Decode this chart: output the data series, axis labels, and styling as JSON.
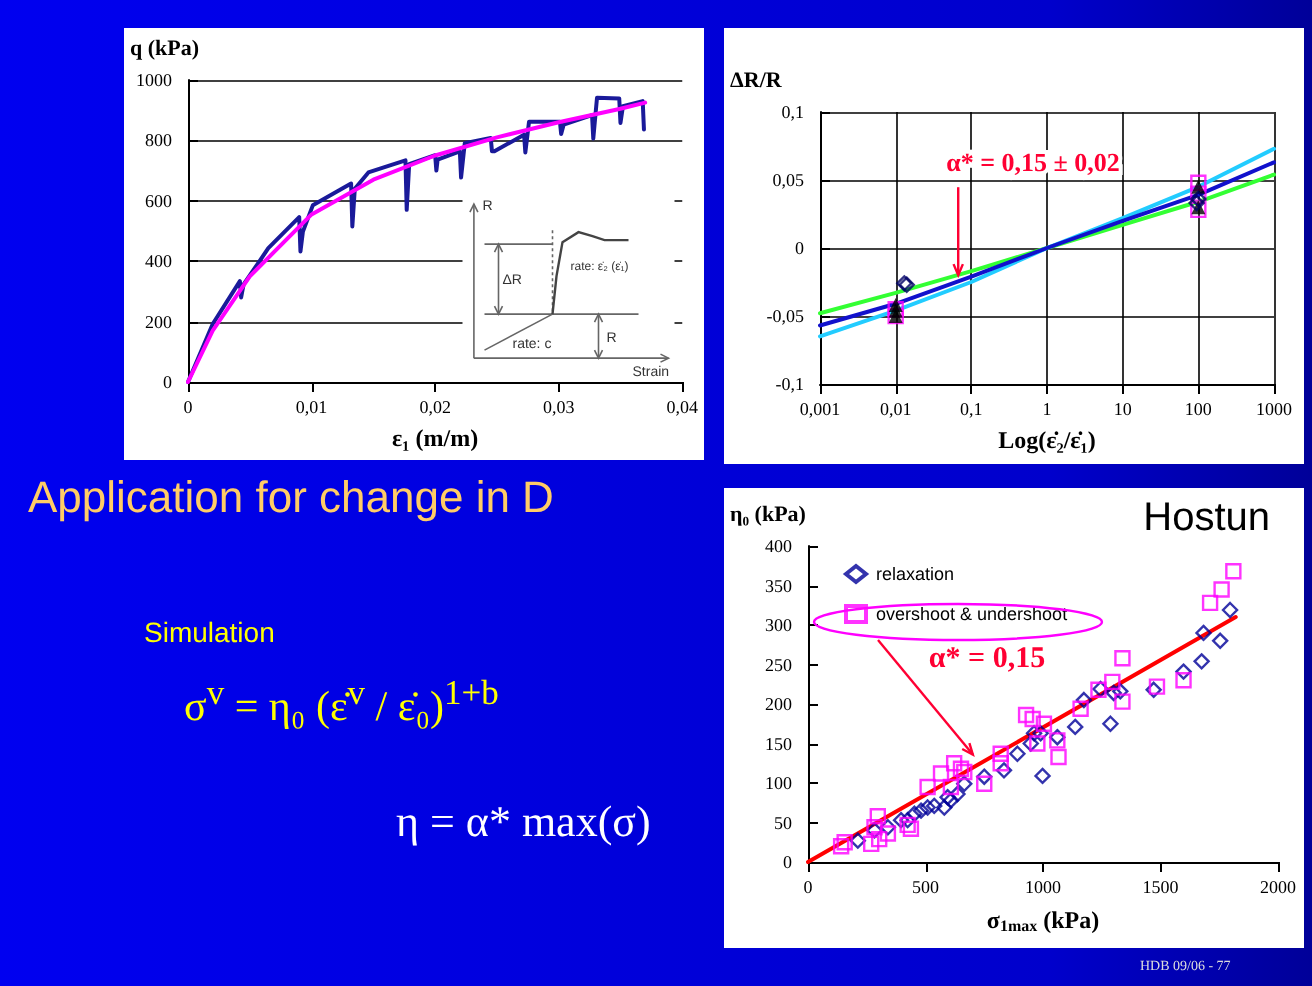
{
  "chart_data": [
    {
      "type": "line",
      "ylabel": "q (kPa)",
      "xlabel": "ε₁ (m/m)",
      "xlim": [
        0,
        0.04
      ],
      "ylim": [
        0,
        1000
      ],
      "xticks": [
        0,
        {
          "value": 0.01,
          "label": "0,01"
        },
        {
          "value": 0.02,
          "label": "0,02"
        },
        {
          "value": 0.03,
          "label": "0,03"
        },
        {
          "value": 0.04,
          "label": "0,04"
        }
      ],
      "yticks": [
        0,
        200,
        400,
        600,
        800,
        1000
      ],
      "grid": "y",
      "marker": "none",
      "series": [
        {
          "color": "#1a1a9a",
          "x": [
            0,
            0.002,
            0.0042,
            0.0043,
            0.0045,
            0.0065,
            0.009,
            0.0091,
            0.0093,
            0.0101,
            0.0132,
            0.0133,
            0.0135,
            0.0146,
            0.0176,
            0.0177,
            0.0179,
            0.02,
            0.0201,
            0.0202,
            0.022,
            0.0221,
            0.0224,
            0.0245,
            0.0246,
            0.0248,
            0.0272,
            0.0273,
            0.0276,
            0.0301,
            0.0302,
            0.0304,
            0.0327,
            0.0328,
            0.0331,
            0.0349,
            0.035,
            0.0352,
            0.0368,
            0.0369
          ],
          "values": [
            0,
            192,
            334,
            280,
            323,
            443,
            546,
            432,
            498,
            585,
            657,
            515,
            640,
            694,
            734,
            570,
            721,
            751,
            700,
            736,
            764,
            677,
            791,
            808,
            764,
            764,
            819,
            760,
            862,
            862,
            821,
            852,
            884,
            806,
            941,
            939,
            858,
            913,
            930,
            836
          ]
        },
        {
          "color": "#ff00ff",
          "x": [
            0,
            0.002,
            0.005,
            0.01,
            0.015,
            0.02,
            0.025,
            0.03,
            0.035,
            0.037
          ],
          "values": [
            0,
            170,
            350,
            555,
            670,
            750,
            810,
            860,
            905,
            925
          ]
        }
      ],
      "annotations": [
        "R",
        "ΔR",
        "rate: ε̇₂ (ε̇₁)",
        "rate: c",
        "R",
        "Strain"
      ]
    },
    {
      "type": "line",
      "ylabel": "ΔR/R",
      "xlabel": "Log(ε̇₂/ε̇₁)",
      "log": "x",
      "xlim": [
        0.001,
        1000
      ],
      "ylim": [
        -0.1,
        0.1
      ],
      "xticks": [
        {
          "value": 0.001,
          "label": "0,001"
        },
        {
          "value": 0.01,
          "label": "0,01"
        },
        {
          "value": 0.1,
          "label": "0,1"
        },
        1,
        10,
        100,
        1000
      ],
      "yticks": [
        {
          "value": -0.1,
          "label": "-0,1"
        },
        {
          "value": -0.05,
          "label": "-0,05"
        },
        0,
        {
          "value": 0.05,
          "label": "0,05"
        },
        {
          "value": 0.1,
          "label": "0,1"
        }
      ],
      "grid": true,
      "marker": "none",
      "x": [
        0.001,
        0.01,
        0.1,
        1,
        10,
        100,
        1000
      ],
      "series": [
        {
          "color": "#33ff33",
          "values": [
            -0.048,
            -0.033,
            -0.017,
            0,
            0.017,
            0.034,
            0.054
          ]
        },
        {
          "color": "#22ccff",
          "values": [
            -0.065,
            -0.046,
            -0.025,
            0,
            0.022,
            0.045,
            0.073
          ]
        },
        {
          "color": "#1111cc",
          "values": [
            -0.057,
            -0.041,
            -0.021,
            0,
            0.02,
            0.039,
            0.063
          ]
        },
        {
          "type": "scatter",
          "marker": "square",
          "color": "#ff00ff",
          "x": [
            0.01,
            0.01,
            100,
            100,
            100
          ],
          "values": [
            -0.045,
            -0.05,
            0.028,
            0.04,
            0.048
          ]
        },
        {
          "type": "scatter",
          "marker": "triangle",
          "color": "#000000",
          "x": [
            0.01,
            0.01,
            0.01,
            100,
            100
          ],
          "values": [
            -0.042,
            -0.046,
            -0.05,
            0.03,
            0.045
          ]
        },
        {
          "type": "scatter",
          "marker": "diamond",
          "color": "#000066",
          "x": [
            0.013,
            0.014,
            95,
            100
          ],
          "values": [
            -0.026,
            -0.027,
            0.033,
            0.036
          ]
        }
      ],
      "annotations": [
        {
          "text": "α* = 0,15 ± 0,02",
          "x": 0.07,
          "y": -0.02
        }
      ]
    },
    {
      "type": "scatter",
      "title": "Hostun",
      "ylabel": "η₀ (kPa)",
      "xlabel": "σ$_{1max}$ (kPa)",
      "xlim": [
        0,
        2000
      ],
      "ylim": [
        0,
        400
      ],
      "xticks": [
        0,
        500,
        1000,
        1500,
        2000
      ],
      "yticks": [
        0,
        50,
        100,
        150,
        200,
        250,
        300,
        350,
        400
      ],
      "grid": false,
      "legend": "top left",
      "series": [
        {
          "name": "relaxation",
          "marker": "diamond",
          "color": "#000099",
          "x": [
            212,
            283,
            340,
            396,
            424,
            453,
            481,
            509,
            537,
            580,
            594,
            608,
            636,
            665,
            750,
            834,
            891,
            948,
            962,
            990,
            998,
            1061,
            1137,
            1174,
            1245,
            1287,
            1301,
            1329,
            1471,
            1598,
            1675,
            1683,
            1754,
            1796
          ],
          "values": [
            27,
            40,
            44,
            53,
            53,
            61,
            65,
            69,
            71,
            69,
            82,
            78,
            86,
            99,
            108,
            116,
            137,
            150,
            163,
            163,
            109,
            158,
            171,
            205,
            219,
            175,
            214,
            216,
            218,
            241,
            254,
            290,
            280,
            319
          ]
        },
        {
          "name": "overshoot & undershoot",
          "marker": "square",
          "color": "#ff00ff",
          "x": [
            141,
            156,
            269,
            283,
            297,
            303,
            340,
            424,
            438,
            509,
            566,
            608,
            622,
            651,
            665,
            750,
            820,
            820,
            928,
            956,
            976,
            1004,
            1061,
            1066,
            1160,
            1236,
            1295,
            1338,
            1338,
            1485,
            1598,
            1711,
            1760,
            1810
          ],
          "values": [
            20,
            25,
            23,
            44,
            58,
            29,
            36,
            47,
            42,
            95,
            112,
            95,
            125,
            118,
            114,
            99,
            137,
            125,
            186,
            181,
            150,
            175,
            154,
            133,
            194,
            218,
            228,
            258,
            203,
            222,
            230,
            328,
            345,
            368
          ]
        },
        {
          "type": "line",
          "color": "#ff0000",
          "marker": "none",
          "x": [
            0,
            1820
          ],
          "values": [
            0,
            310
          ]
        }
      ],
      "annotations": [
        {
          "text": "α* = 0,15",
          "x": 707,
          "y": 136
        }
      ]
    },
    {
      "type": "other",
      "title": "Application for change in D",
      "annotations": [
        "Simulation",
        "σ$^{v}$ = η₀ (ε̇$^{v}$ / ε̇₀)$^{1+b}$",
        "η = α* max(σ)",
        "HDB 09/06 - 77"
      ]
    }
  ]
}
